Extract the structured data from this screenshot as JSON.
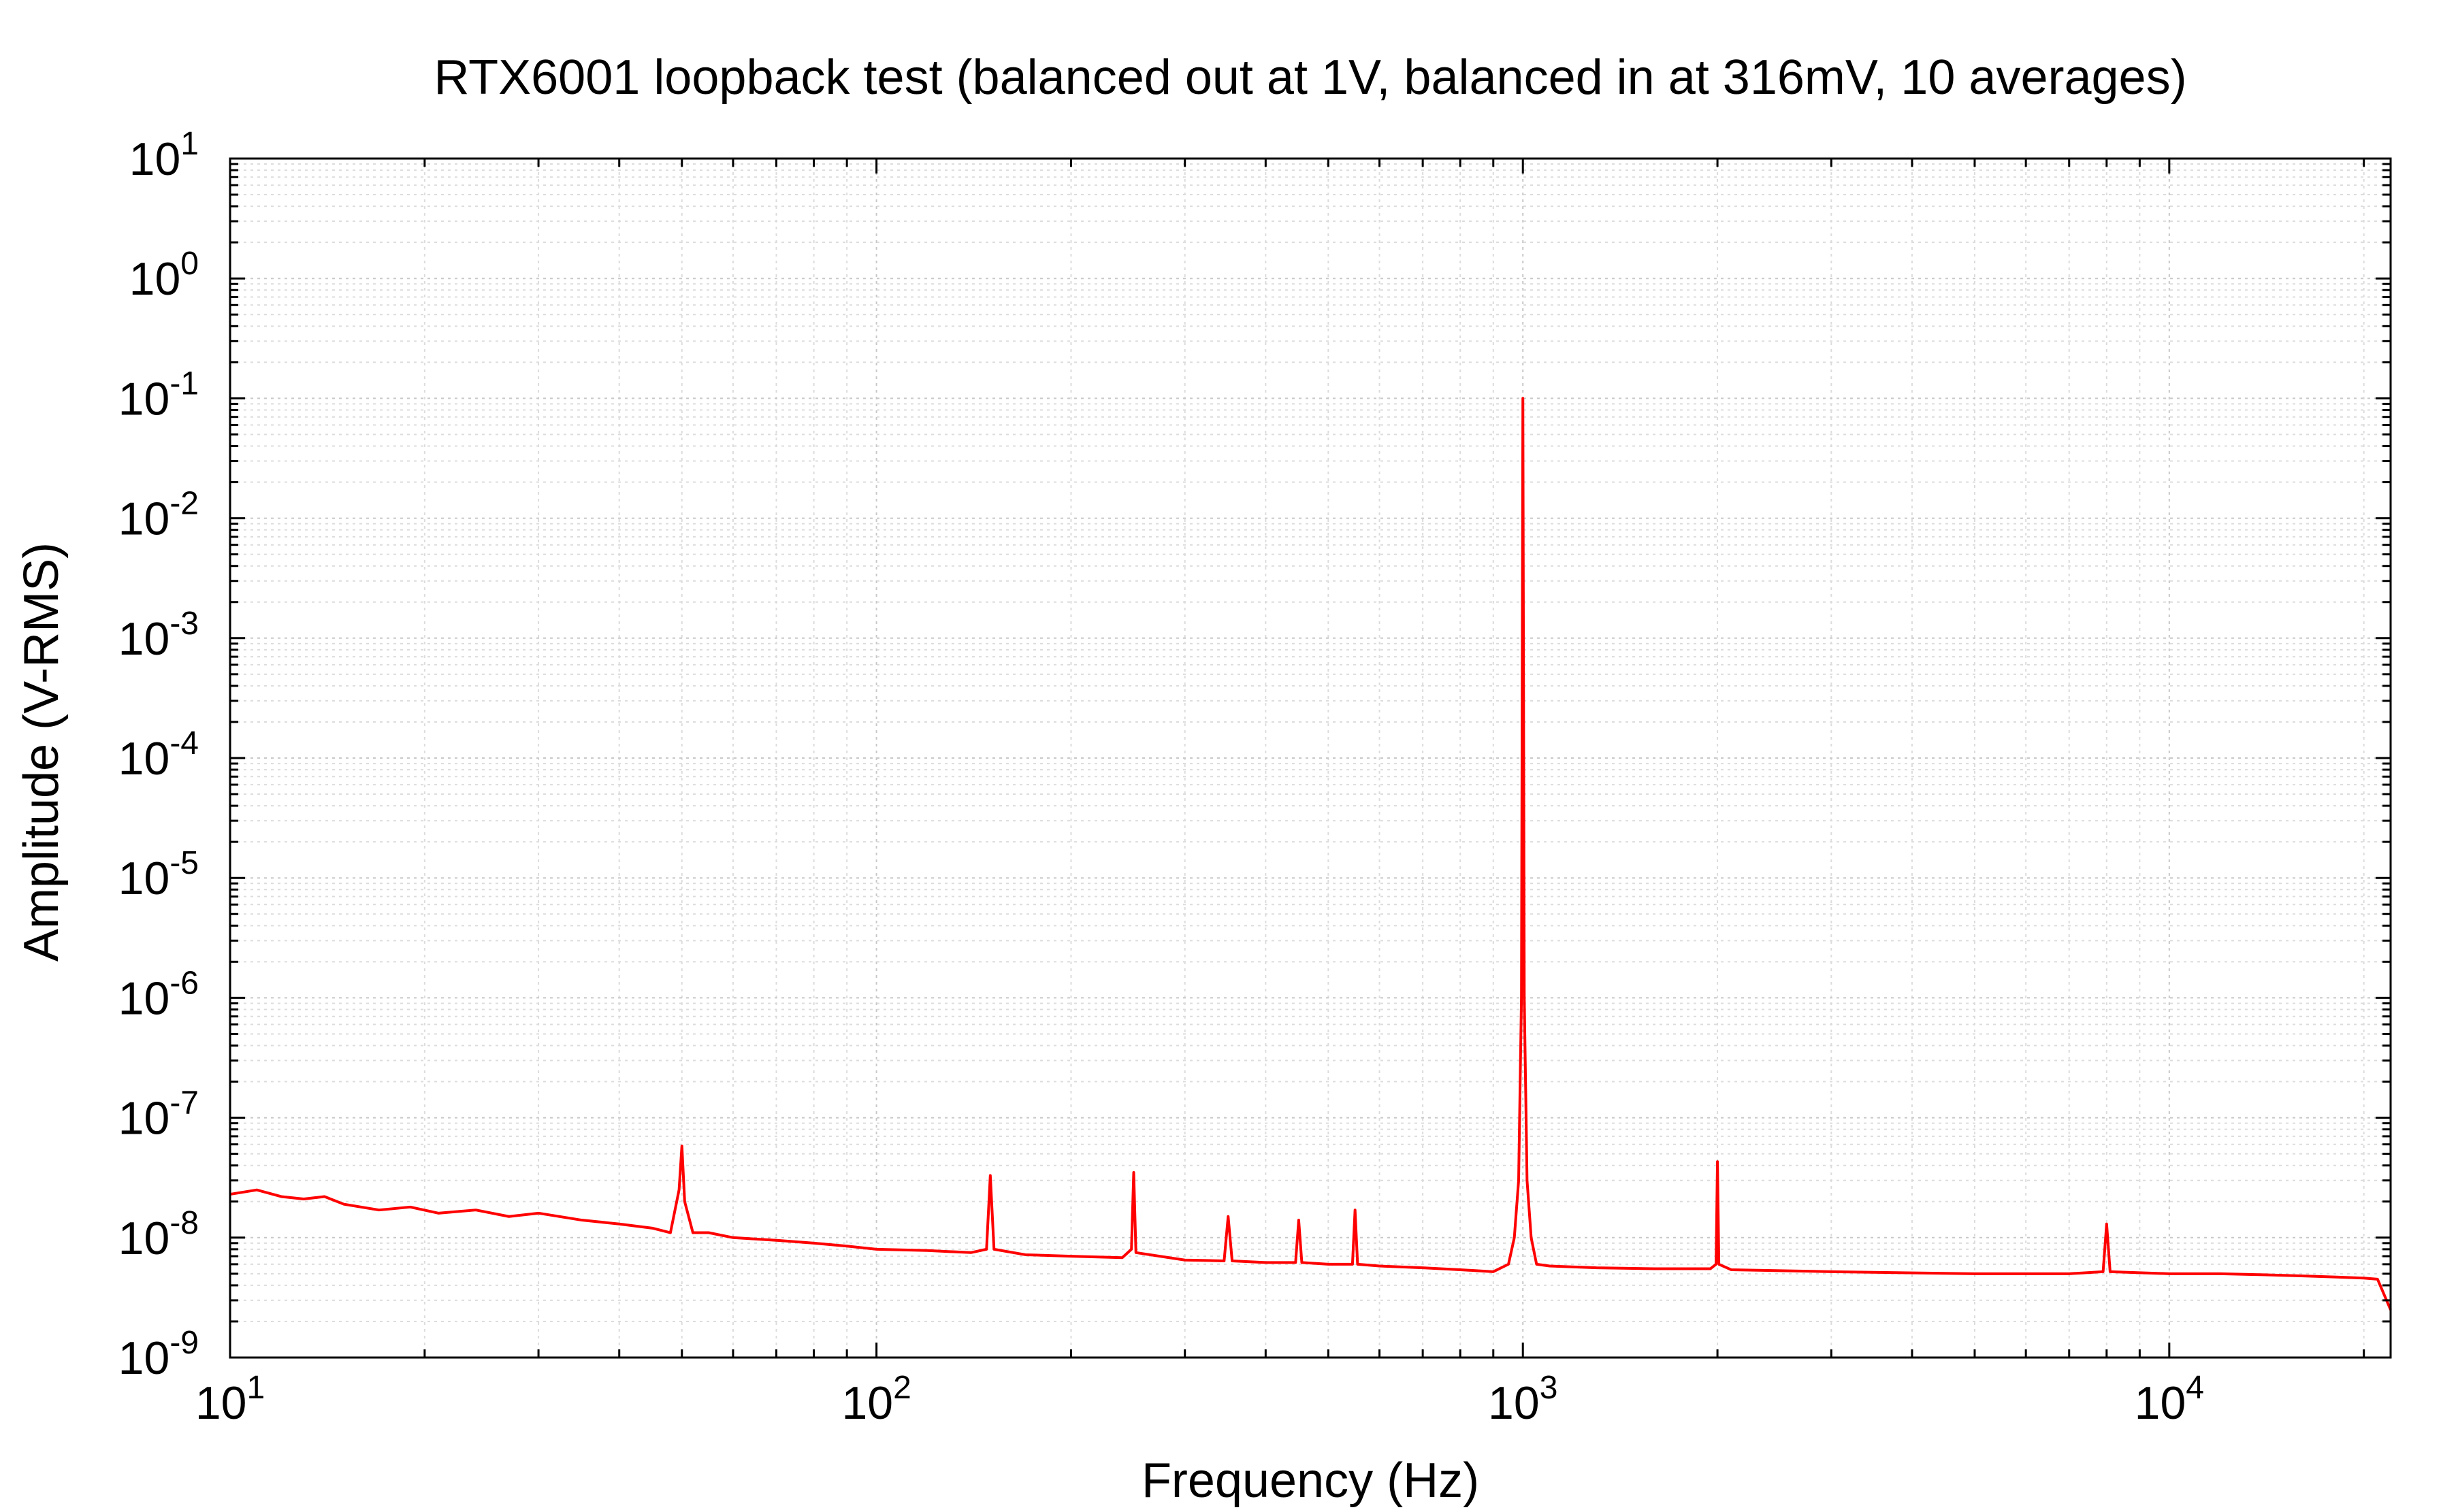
{
  "chart_data": {
    "type": "line",
    "title": "RTX6001 loopback test (balanced out at 1V, balanced in at 316mV, 10 averages)",
    "xlabel": "Frequency (Hz)",
    "ylabel": "Amplitude (V-RMS)",
    "x_scale": "log",
    "y_scale": "log",
    "xlim": [
      10,
      22000
    ],
    "ylim": [
      1e-09,
      10
    ],
    "grid": true,
    "legend": "none",
    "x_ticks": [
      {
        "value": 10,
        "base": "10",
        "exp": "1"
      },
      {
        "value": 100,
        "base": "10",
        "exp": "2"
      },
      {
        "value": 1000,
        "base": "10",
        "exp": "3"
      },
      {
        "value": 10000,
        "base": "10",
        "exp": "4"
      }
    ],
    "y_ticks": [
      {
        "value": 1e-09,
        "base": "10",
        "exp": "-9"
      },
      {
        "value": 1e-08,
        "base": "10",
        "exp": "-8"
      },
      {
        "value": 1e-07,
        "base": "10",
        "exp": "-7"
      },
      {
        "value": 1e-06,
        "base": "10",
        "exp": "-6"
      },
      {
        "value": 1e-05,
        "base": "10",
        "exp": "-5"
      },
      {
        "value": 0.0001,
        "base": "10",
        "exp": "-4"
      },
      {
        "value": 0.001,
        "base": "10",
        "exp": "-3"
      },
      {
        "value": 0.01,
        "base": "10",
        "exp": "-2"
      },
      {
        "value": 0.1,
        "base": "10",
        "exp": "-1"
      },
      {
        "value": 1,
        "base": "10",
        "exp": "0"
      },
      {
        "value": 10,
        "base": "10",
        "exp": "1"
      }
    ],
    "series": [
      {
        "color": "#ff0000",
        "x": [
          10,
          11,
          12,
          13,
          14,
          15,
          17,
          19,
          21,
          24,
          27,
          30,
          35,
          40,
          45,
          48,
          49.5,
          50,
          50.5,
          52,
          55,
          60,
          70,
          80,
          90,
          100,
          120,
          140,
          148,
          150,
          152,
          170,
          200,
          240,
          248,
          250,
          252,
          300,
          345,
          350,
          355,
          400,
          445,
          450,
          455,
          500,
          545,
          550,
          555,
          600,
          700,
          800,
          900,
          950,
          970,
          985,
          995,
          1000,
          1005,
          1015,
          1030,
          1050,
          1100,
          1300,
          1600,
          1950,
          1990,
          2000,
          2010,
          2100,
          3000,
          5000,
          7000,
          7900,
          8000,
          8100,
          10000,
          12000,
          14000,
          16000,
          18000,
          20000,
          21000,
          22000
        ],
        "y": [
          2.3e-08,
          2.5e-08,
          2.2e-08,
          2.1e-08,
          2.2e-08,
          1.9e-08,
          1.7e-08,
          1.8e-08,
          1.6e-08,
          1.7e-08,
          1.5e-08,
          1.6e-08,
          1.4e-08,
          1.3e-08,
          1.2e-08,
          1.1e-08,
          2.5e-08,
          5.8e-08,
          2e-08,
          1.1e-08,
          1.1e-08,
          1e-08,
          9.5e-09,
          9e-09,
          8.5e-09,
          8e-09,
          7.8e-09,
          7.5e-09,
          8e-09,
          3.3e-08,
          8e-09,
          7.2e-09,
          7e-09,
          6.8e-09,
          8e-09,
          3.5e-08,
          7.5e-09,
          6.5e-09,
          6.4e-09,
          1.5e-08,
          6.4e-09,
          6.2e-09,
          6.2e-09,
          1.4e-08,
          6.2e-09,
          6e-09,
          6e-09,
          1.7e-08,
          6e-09,
          5.8e-09,
          5.6e-09,
          5.4e-09,
          5.2e-09,
          6e-09,
          1e-08,
          3e-08,
          1e-06,
          0.1,
          1e-06,
          3e-08,
          1e-08,
          6e-09,
          5.8e-09,
          5.6e-09,
          5.5e-09,
          5.5e-09,
          6e-09,
          4.3e-08,
          6e-09,
          5.4e-09,
          5.2e-09,
          5e-09,
          5e-09,
          5.2e-09,
          1.3e-08,
          5.2e-09,
          5e-09,
          5e-09,
          4.9e-09,
          4.8e-09,
          4.7e-09,
          4.6e-09,
          4.5e-09,
          2.5e-09
        ]
      }
    ]
  }
}
